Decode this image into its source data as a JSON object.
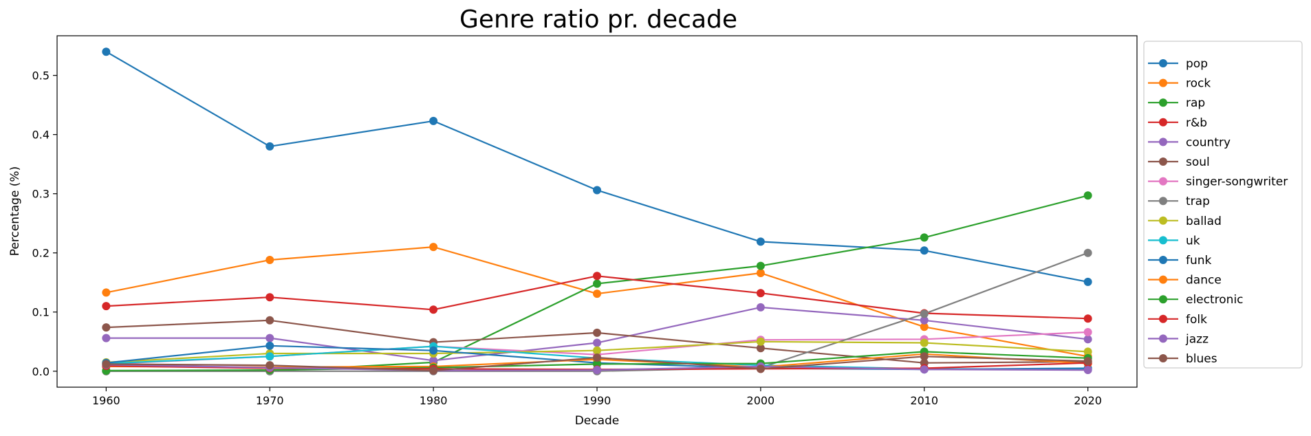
{
  "chart_data": {
    "type": "line",
    "title": "Genre ratio pr. decade",
    "xlabel": "Decade",
    "ylabel": "Percentage (%)",
    "x": [
      1960,
      1970,
      1980,
      1990,
      2000,
      2010,
      2020
    ],
    "xticks": [
      "1960",
      "1970",
      "1980",
      "1990",
      "2000",
      "2010",
      "2020"
    ],
    "yticks": [
      "0.0",
      "0.1",
      "0.2",
      "0.3",
      "0.4",
      "0.5"
    ],
    "xlim": [
      1957,
      2023
    ],
    "ylim": [
      -0.027,
      0.567
    ],
    "grid": false,
    "legend_position": "outside-right",
    "series": [
      {
        "name": "pop",
        "color": "#1f77b4",
        "values": [
          0.54,
          0.38,
          0.423,
          0.306,
          0.219,
          0.204,
          0.151
        ]
      },
      {
        "name": "rock",
        "color": "#ff7f0e",
        "values": [
          0.133,
          0.188,
          0.21,
          0.131,
          0.166,
          0.075,
          0.025
        ]
      },
      {
        "name": "rap",
        "color": "#2ca02c",
        "values": [
          0.0,
          0.0,
          0.015,
          0.148,
          0.178,
          0.226,
          0.297
        ]
      },
      {
        "name": "r&b",
        "color": "#d62728",
        "values": [
          0.11,
          0.125,
          0.104,
          0.161,
          0.132,
          0.098,
          0.089
        ]
      },
      {
        "name": "country",
        "color": "#9467bd",
        "values": [
          0.056,
          0.056,
          0.018,
          0.048,
          0.108,
          0.086,
          0.054
        ]
      },
      {
        "name": "soul",
        "color": "#8c564b",
        "values": [
          0.074,
          0.086,
          0.049,
          0.065,
          0.039,
          0.014,
          0.016
        ]
      },
      {
        "name": "singer-songwriter",
        "color": "#e377c2",
        "values": [
          0.012,
          0.025,
          0.042,
          0.028,
          0.053,
          0.054,
          0.066
        ]
      },
      {
        "name": "trap",
        "color": "#7f7f7f",
        "values": [
          0.0,
          0.0,
          0.0,
          0.0,
          0.006,
          0.097,
          0.2
        ]
      },
      {
        "name": "ballad",
        "color": "#bcbd22",
        "values": [
          0.015,
          0.03,
          0.03,
          0.035,
          0.05,
          0.048,
          0.033
        ]
      },
      {
        "name": "uk",
        "color": "#17becf",
        "values": [
          0.013,
          0.025,
          0.042,
          0.022,
          0.01,
          0.004,
          0.003
        ]
      },
      {
        "name": "funk",
        "color": "#1f77b4",
        "values": [
          0.014,
          0.043,
          0.035,
          0.014,
          0.005,
          0.003,
          0.005
        ]
      },
      {
        "name": "dance",
        "color": "#ff7f0e",
        "values": [
          0.008,
          0.007,
          0.008,
          0.02,
          0.007,
          0.029,
          0.013
        ]
      },
      {
        "name": "electronic",
        "color": "#2ca02c",
        "values": [
          0.001,
          0.002,
          0.006,
          0.012,
          0.013,
          0.033,
          0.022
        ]
      },
      {
        "name": "folk",
        "color": "#d62728",
        "values": [
          0.009,
          0.005,
          0.004,
          0.003,
          0.004,
          0.005,
          0.014
        ]
      },
      {
        "name": "jazz",
        "color": "#9467bd",
        "values": [
          0.011,
          0.006,
          0.001,
          0.002,
          0.008,
          0.003,
          0.002
        ]
      },
      {
        "name": "blues",
        "color": "#8c564b",
        "values": [
          0.012,
          0.01,
          0.001,
          0.023,
          0.004,
          0.025,
          0.017
        ]
      }
    ]
  }
}
